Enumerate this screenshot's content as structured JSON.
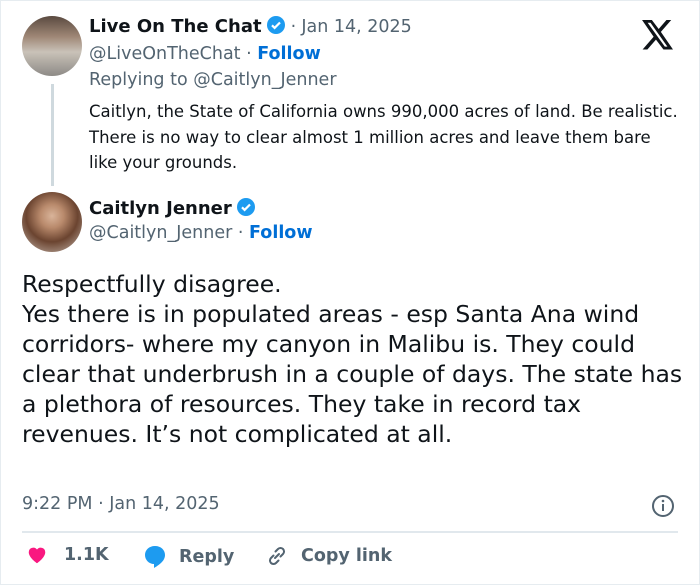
{
  "parent": {
    "name": "Live On The Chat",
    "date": "Jan 14, 2025",
    "handle": "@LiveOnTheChat",
    "follow": "Follow",
    "replying_to": "Replying to @Caitlyn_Jenner",
    "text": "Caitlyn, the State of California owns 990,000 acres of land. Be realistic. There is no way to clear almost 1 million acres and leave them bare like your grounds."
  },
  "main": {
    "name": "Caitlyn Jenner",
    "handle": "@Caitlyn_Jenner",
    "follow": "Follow",
    "text": "Respectfully disagree.\nYes there is in populated areas - esp Santa Ana wind corridors- where my canyon in Malibu is. They could clear that underbrush in a couple of days. The state has a plethora of resources. They take in record tax revenues. It’s not complicated at all.",
    "timestamp": "9:22 PM · Jan 14, 2025"
  },
  "actions": {
    "likes": "1.1K",
    "reply": "Reply",
    "copy": "Copy link"
  },
  "sep": "·",
  "colors": {
    "verified": "#1d9bf0",
    "like": "#f91880",
    "link": "#006fd6"
  }
}
